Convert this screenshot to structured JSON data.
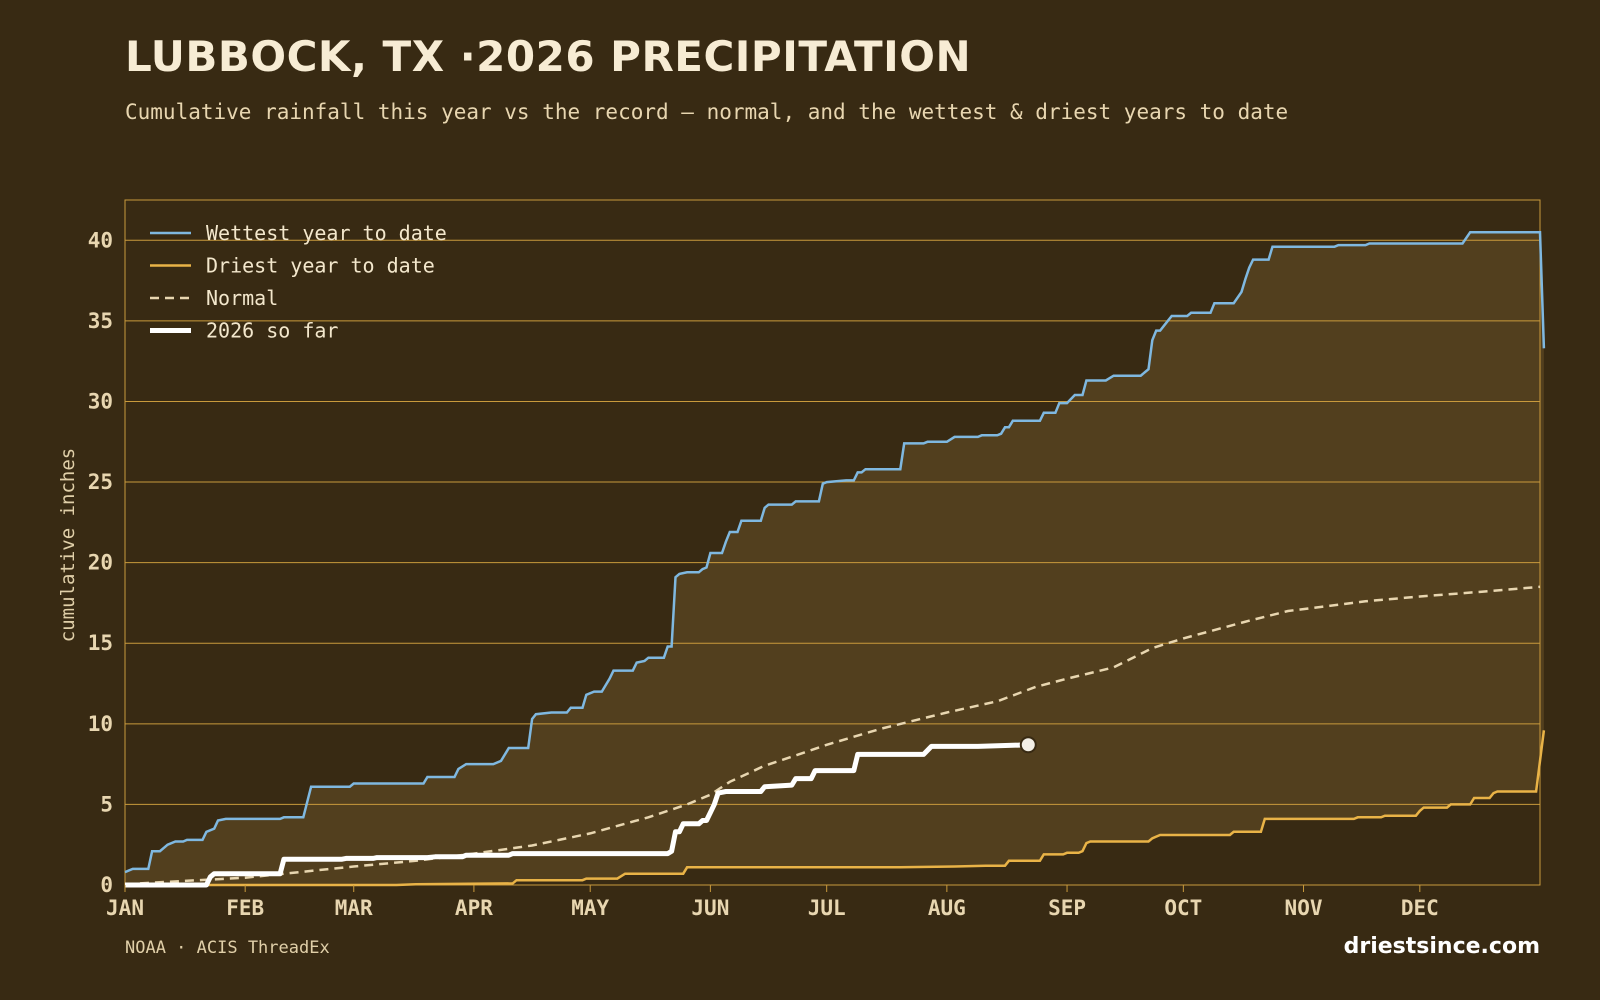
{
  "header": {
    "title": "LUBBOCK, TX ·2026 PRECIPITATION",
    "subtitle": "Cumulative rainfall this year vs the record — normal, and the wettest & driest years to date"
  },
  "footer": {
    "source": "NOAA · ACIS ThreadEx",
    "brand": "driestsince.com"
  },
  "colors": {
    "background": "#382a13",
    "band_fill": "#523f1e",
    "grid": "#c99a3c",
    "wettest": "#7fb8e0",
    "driest": "#e9b347",
    "normal": "#e8d6b0",
    "current": "#ffffff"
  },
  "chart_data": {
    "type": "line",
    "title": "LUBBOCK, TX ·2026 PRECIPITATION",
    "ylabel": "cumulative inches",
    "xlabel": "",
    "ylim": [
      0,
      42.5
    ],
    "xlim": [
      0,
      365
    ],
    "y_ticks": [
      0,
      5,
      10,
      15,
      20,
      25,
      30,
      35,
      40
    ],
    "x_ticks": [
      {
        "label": "JAN",
        "day": 0
      },
      {
        "label": "FEB",
        "day": 31
      },
      {
        "label": "MAR",
        "day": 59
      },
      {
        "label": "APR",
        "day": 90
      },
      {
        "label": "MAY",
        "day": 120
      },
      {
        "label": "JUN",
        "day": 151
      },
      {
        "label": "JUL",
        "day": 181
      },
      {
        "label": "AUG",
        "day": 212
      },
      {
        "label": "SEP",
        "day": 243
      },
      {
        "label": "OCT",
        "day": 273
      },
      {
        "label": "NOV",
        "day": 304
      },
      {
        "label": "DEC",
        "day": 334
      }
    ],
    "grid": true,
    "legend_position": "top-left",
    "shaded_band": "between wettest and driest year to date",
    "series": [
      {
        "name": "Wettest year to date",
        "style": "solid",
        "points": [
          [
            0,
            0.8
          ],
          [
            2,
            1.0
          ],
          [
            6,
            1.0
          ],
          [
            7,
            2.1
          ],
          [
            9,
            2.1
          ],
          [
            11,
            2.5
          ],
          [
            13,
            2.7
          ],
          [
            15,
            2.7
          ],
          [
            16,
            2.8
          ],
          [
            20,
            2.8
          ],
          [
            21,
            3.3
          ],
          [
            23,
            3.5
          ],
          [
            24,
            4.0
          ],
          [
            26,
            4.1
          ],
          [
            40,
            4.1
          ],
          [
            41,
            4.2
          ],
          [
            46,
            4.2
          ],
          [
            48,
            6.1
          ],
          [
            58,
            6.1
          ],
          [
            59,
            6.3
          ],
          [
            77,
            6.3
          ],
          [
            78,
            6.7
          ],
          [
            85,
            6.7
          ],
          [
            86,
            7.2
          ],
          [
            88,
            7.5
          ],
          [
            95,
            7.5
          ],
          [
            97,
            7.7
          ],
          [
            99,
            8.5
          ],
          [
            104,
            8.5
          ],
          [
            105,
            10.3
          ],
          [
            106,
            10.6
          ],
          [
            110,
            10.7
          ],
          [
            114,
            10.7
          ],
          [
            115,
            11.0
          ],
          [
            118,
            11.0
          ],
          [
            119,
            11.8
          ],
          [
            121,
            12.0
          ],
          [
            123,
            12.0
          ],
          [
            125,
            12.8
          ],
          [
            126,
            13.3
          ],
          [
            131,
            13.3
          ],
          [
            132,
            13.8
          ],
          [
            134,
            13.9
          ],
          [
            135,
            14.1
          ],
          [
            139,
            14.1
          ],
          [
            140,
            14.8
          ],
          [
            141,
            14.8
          ],
          [
            142,
            19.1
          ],
          [
            143,
            19.3
          ],
          [
            145,
            19.4
          ],
          [
            148,
            19.4
          ],
          [
            149,
            19.6
          ],
          [
            150,
            19.7
          ],
          [
            151,
            20.6
          ],
          [
            154,
            20.6
          ],
          [
            155,
            21.3
          ],
          [
            156,
            21.9
          ],
          [
            158,
            21.9
          ],
          [
            159,
            22.6
          ],
          [
            164,
            22.6
          ],
          [
            165,
            23.4
          ],
          [
            166,
            23.6
          ],
          [
            172,
            23.6
          ],
          [
            173,
            23.8
          ],
          [
            179,
            23.8
          ],
          [
            180,
            24.9
          ],
          [
            181,
            25.0
          ],
          [
            186,
            25.1
          ],
          [
            188,
            25.1
          ],
          [
            189,
            25.6
          ],
          [
            190,
            25.6
          ],
          [
            191,
            25.8
          ],
          [
            200,
            25.8
          ],
          [
            201,
            27.4
          ],
          [
            206,
            27.4
          ],
          [
            207,
            27.5
          ],
          [
            212,
            27.5
          ],
          [
            214,
            27.8
          ],
          [
            220,
            27.8
          ],
          [
            221,
            27.9
          ],
          [
            225,
            27.9
          ],
          [
            226,
            28.0
          ],
          [
            227,
            28.4
          ],
          [
            228,
            28.4
          ],
          [
            229,
            28.8
          ],
          [
            236,
            28.8
          ],
          [
            237,
            29.3
          ],
          [
            240,
            29.3
          ],
          [
            241,
            29.9
          ],
          [
            243,
            29.9
          ],
          [
            245,
            30.4
          ],
          [
            247,
            30.4
          ],
          [
            248,
            31.3
          ],
          [
            253,
            31.3
          ],
          [
            255,
            31.6
          ],
          [
            262,
            31.6
          ],
          [
            264,
            32.0
          ],
          [
            265,
            33.8
          ],
          [
            266,
            34.4
          ],
          [
            267,
            34.4
          ],
          [
            268,
            34.7
          ],
          [
            270,
            35.3
          ],
          [
            274,
            35.3
          ],
          [
            275,
            35.5
          ],
          [
            280,
            35.5
          ],
          [
            281,
            36.1
          ],
          [
            286,
            36.1
          ],
          [
            288,
            36.8
          ],
          [
            289,
            37.6
          ],
          [
            290,
            38.3
          ],
          [
            291,
            38.8
          ],
          [
            295,
            38.8
          ],
          [
            296,
            39.6
          ],
          [
            312,
            39.6
          ],
          [
            313,
            39.7
          ],
          [
            320,
            39.7
          ],
          [
            321,
            39.8
          ],
          [
            345,
            39.8
          ],
          [
            347,
            40.5
          ],
          [
            365,
            40.5
          ],
          [
            366,
            33.3
          ]
        ]
      },
      {
        "name": "Driest year to date",
        "style": "solid",
        "points": [
          [
            0,
            0
          ],
          [
            70,
            0
          ],
          [
            75,
            0.05
          ],
          [
            100,
            0.1
          ],
          [
            101,
            0.3
          ],
          [
            118,
            0.3
          ],
          [
            119,
            0.4
          ],
          [
            127,
            0.4
          ],
          [
            129,
            0.7
          ],
          [
            144,
            0.7
          ],
          [
            145,
            1.1
          ],
          [
            184,
            1.1
          ],
          [
            200,
            1.1
          ],
          [
            214,
            1.15
          ],
          [
            222,
            1.2
          ],
          [
            227,
            1.2
          ],
          [
            228,
            1.5
          ],
          [
            236,
            1.5
          ],
          [
            237,
            1.9
          ],
          [
            242,
            1.9
          ],
          [
            243,
            2.0
          ],
          [
            246,
            2.0
          ],
          [
            247,
            2.1
          ],
          [
            248,
            2.6
          ],
          [
            249,
            2.7
          ],
          [
            264,
            2.7
          ],
          [
            265,
            2.9
          ],
          [
            266,
            3.0
          ],
          [
            267,
            3.1
          ],
          [
            285,
            3.1
          ],
          [
            286,
            3.3
          ],
          [
            293,
            3.3
          ],
          [
            294,
            4.1
          ],
          [
            317,
            4.1
          ],
          [
            318,
            4.2
          ],
          [
            324,
            4.2
          ],
          [
            325,
            4.3
          ],
          [
            333,
            4.3
          ],
          [
            334,
            4.6
          ],
          [
            335,
            4.8
          ],
          [
            341,
            4.8
          ],
          [
            342,
            5.0
          ],
          [
            347,
            5.0
          ],
          [
            348,
            5.4
          ],
          [
            352,
            5.4
          ],
          [
            353,
            5.7
          ],
          [
            354,
            5.8
          ],
          [
            364,
            5.8
          ],
          [
            366,
            9.6
          ]
        ]
      },
      {
        "name": "Normal",
        "style": "dashed",
        "points": [
          [
            0,
            0.05
          ],
          [
            15,
            0.25
          ],
          [
            31,
            0.45
          ],
          [
            45,
            0.8
          ],
          [
            59,
            1.15
          ],
          [
            75,
            1.5
          ],
          [
            90,
            1.95
          ],
          [
            105,
            2.45
          ],
          [
            120,
            3.2
          ],
          [
            135,
            4.2
          ],
          [
            145,
            5.0
          ],
          [
            151,
            5.6
          ],
          [
            156,
            6.4
          ],
          [
            165,
            7.4
          ],
          [
            175,
            8.2
          ],
          [
            181,
            8.7
          ],
          [
            195,
            9.7
          ],
          [
            212,
            10.7
          ],
          [
            225,
            11.4
          ],
          [
            235,
            12.3
          ],
          [
            243,
            12.8
          ],
          [
            255,
            13.5
          ],
          [
            265,
            14.7
          ],
          [
            273,
            15.3
          ],
          [
            290,
            16.4
          ],
          [
            300,
            17.0
          ],
          [
            310,
            17.3
          ],
          [
            320,
            17.6
          ],
          [
            334,
            17.9
          ],
          [
            350,
            18.2
          ],
          [
            365,
            18.5
          ]
        ]
      },
      {
        "name": "2026 so far",
        "style": "thick",
        "points": [
          [
            0,
            0
          ],
          [
            21,
            0
          ],
          [
            22,
            0.5
          ],
          [
            23,
            0.7
          ],
          [
            40,
            0.7
          ],
          [
            41,
            1.6
          ],
          [
            56,
            1.6
          ],
          [
            57,
            1.65
          ],
          [
            64,
            1.65
          ],
          [
            65,
            1.7
          ],
          [
            78,
            1.7
          ],
          [
            80,
            1.75
          ],
          [
            87,
            1.75
          ],
          [
            88,
            1.85
          ],
          [
            99,
            1.85
          ],
          [
            100,
            1.95
          ],
          [
            140,
            1.95
          ],
          [
            141,
            2.1
          ],
          [
            142,
            3.3
          ],
          [
            143,
            3.3
          ],
          [
            144,
            3.8
          ],
          [
            148,
            3.8
          ],
          [
            149,
            4.0
          ],
          [
            150,
            4.0
          ],
          [
            151,
            4.5
          ],
          [
            152,
            5.0
          ],
          [
            153,
            5.7
          ],
          [
            155,
            5.8
          ],
          [
            164,
            5.8
          ],
          [
            165,
            6.1
          ],
          [
            172,
            6.2
          ],
          [
            173,
            6.6
          ],
          [
            177,
            6.6
          ],
          [
            178,
            7.1
          ],
          [
            188,
            7.1
          ],
          [
            189,
            8.1
          ],
          [
            206,
            8.1
          ],
          [
            208,
            8.6
          ],
          [
            220,
            8.6
          ],
          [
            233,
            8.7
          ]
        ]
      }
    ]
  }
}
